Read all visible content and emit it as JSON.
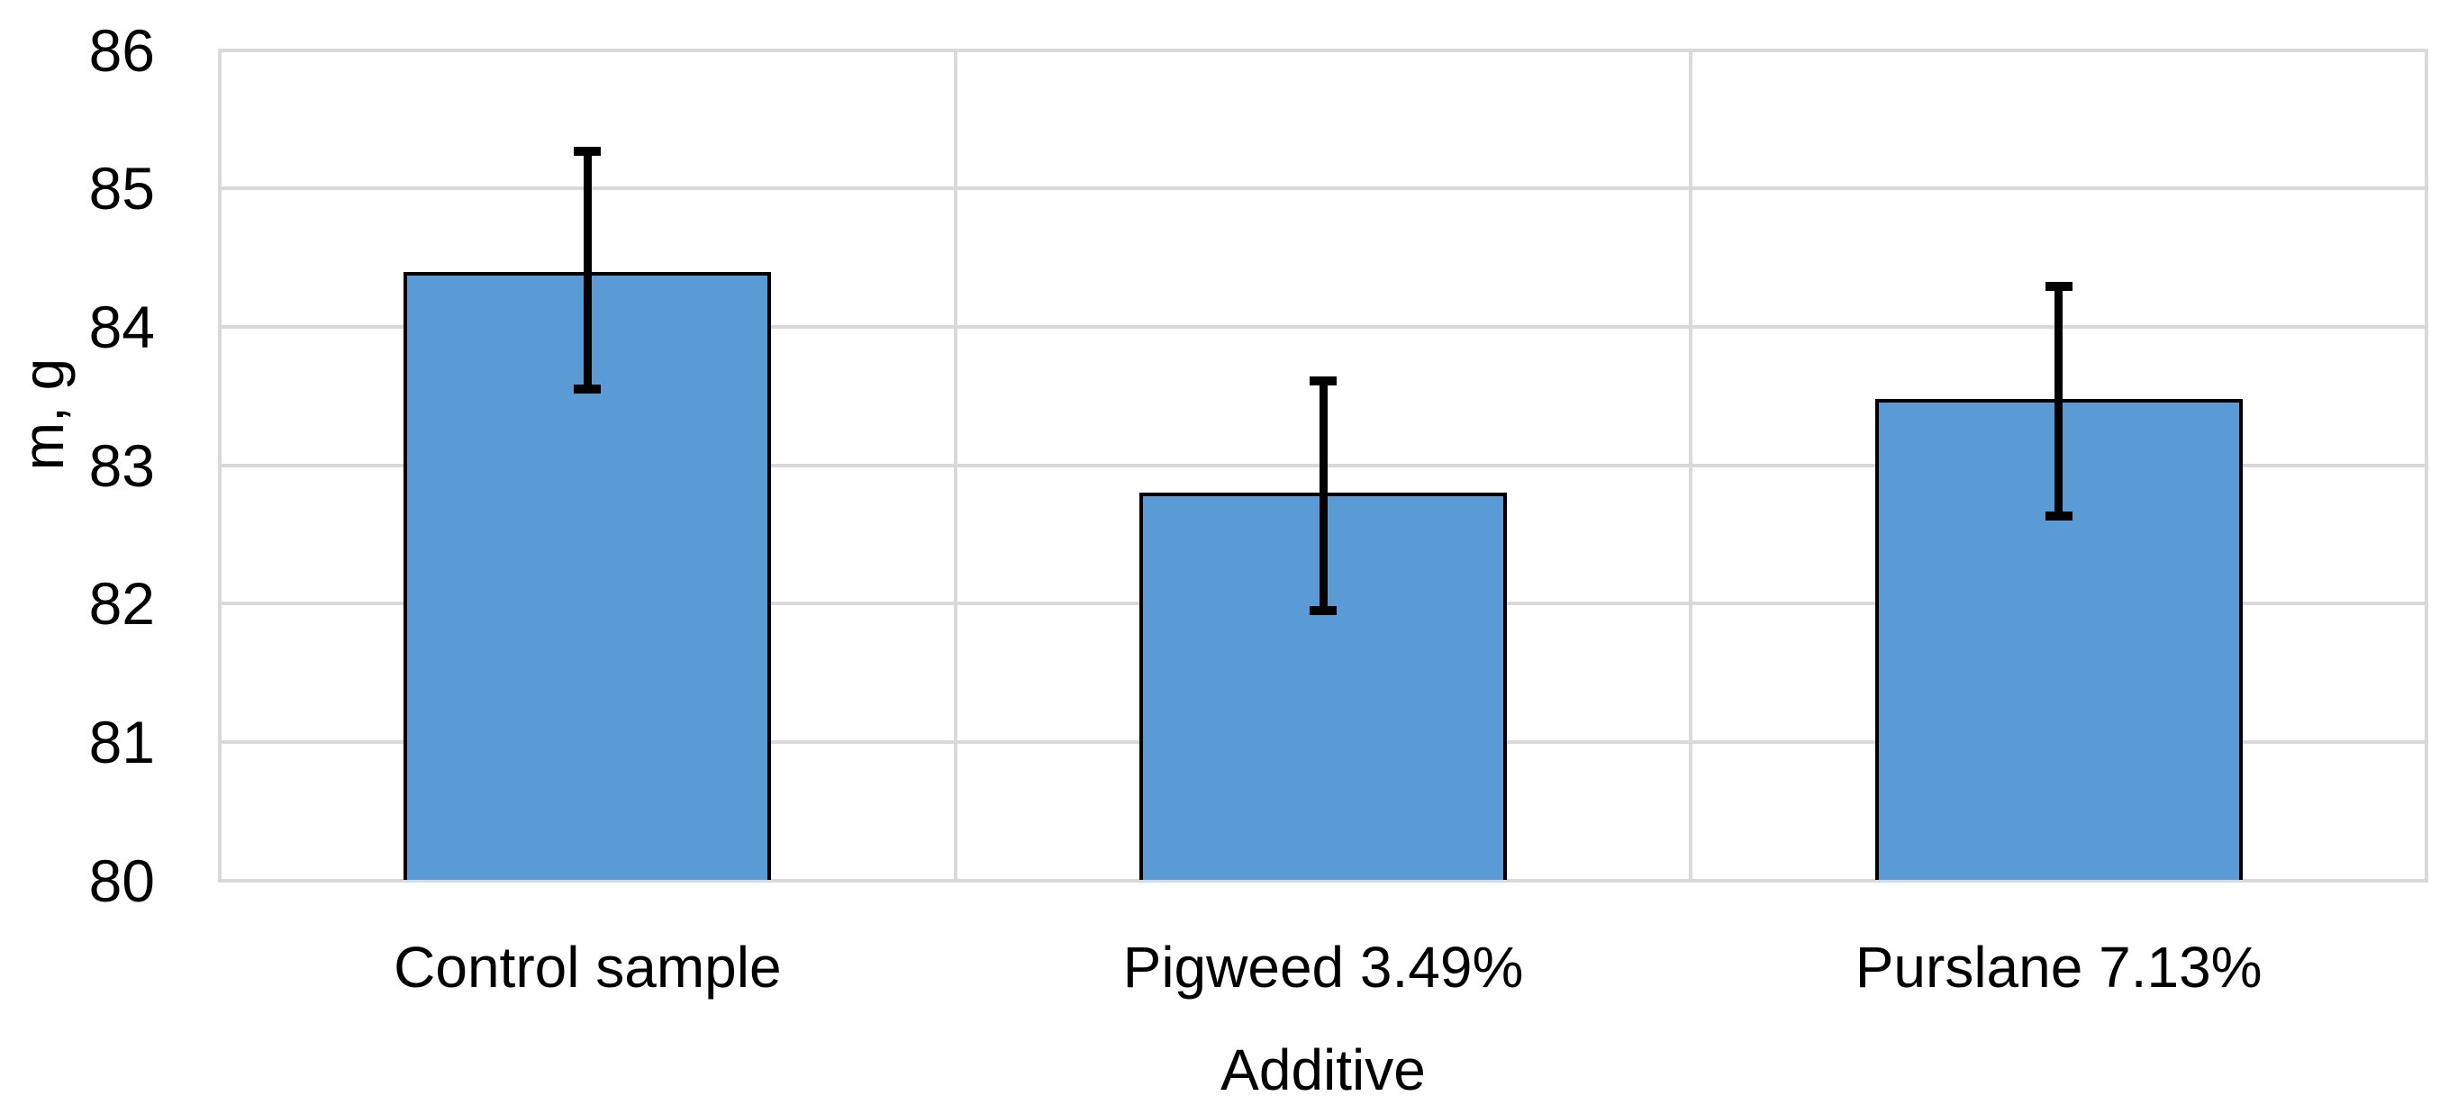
{
  "chart_data": {
    "type": "bar",
    "title": "",
    "categories": [
      "Control sample",
      "Pigweed 3.49%",
      "Purslane 7.13%"
    ],
    "values": [
      84.4,
      82.8,
      83.48
    ],
    "error_upper": [
      85.27,
      83.61,
      84.29
    ],
    "error_lower": [
      83.55,
      81.95,
      82.63
    ],
    "xlabel": "Additive",
    "ylabel": "m, g",
    "ylim": [
      80,
      86
    ],
    "yticks": [
      80,
      81,
      82,
      83,
      84,
      85,
      86
    ],
    "grid": "horizontal major gridlines + vertical category separators + full plot border",
    "legend": "none",
    "bar_gap_ratio": 0.5,
    "bar_color": "#5B9BD5",
    "bar_border_color": "#000000",
    "error_bar_color": "#000000",
    "gridline_color": "#D9D9D9",
    "text_color": "#000000",
    "background": "#FFFFFF"
  }
}
